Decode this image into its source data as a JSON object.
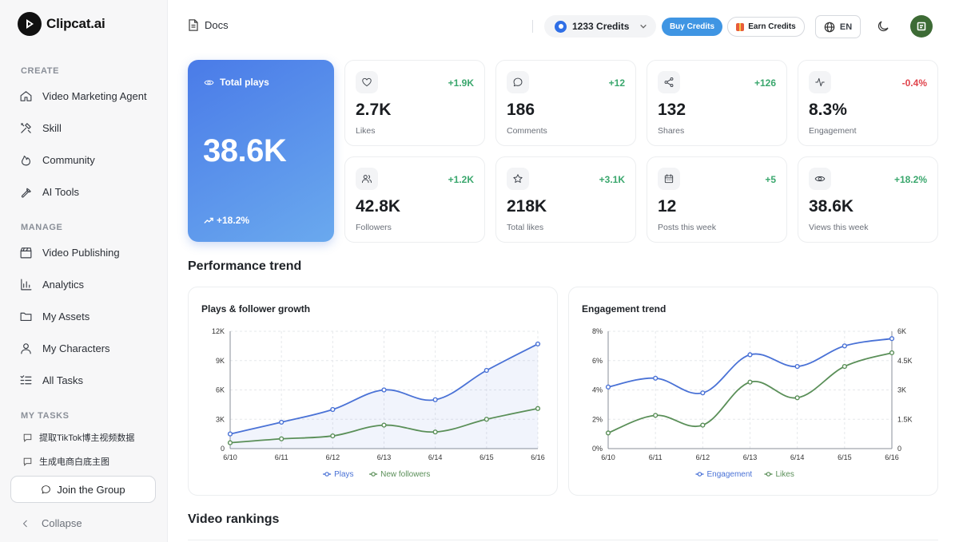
{
  "brand": {
    "name": "Clipcat.ai"
  },
  "sidebar": {
    "sections": {
      "create": "CREATE",
      "manage": "MANAGE",
      "tasks": "MY TASKS"
    },
    "create_items": [
      {
        "label": "Video Marketing Agent",
        "icon": "home-icon"
      },
      {
        "label": "Skill",
        "icon": "tools-icon"
      },
      {
        "label": "Community",
        "icon": "flame-icon"
      },
      {
        "label": "AI Tools",
        "icon": "wrench-icon"
      }
    ],
    "manage_items": [
      {
        "label": "Video Publishing",
        "icon": "clapperboard-icon"
      },
      {
        "label": "Analytics",
        "icon": "bar-chart-icon"
      },
      {
        "label": "My Assets",
        "icon": "folder-icon"
      },
      {
        "label": "My Characters",
        "icon": "user-icon"
      },
      {
        "label": "All Tasks",
        "icon": "checklist-icon"
      }
    ],
    "tasks": [
      {
        "label": "提取TikTok博主视频数据",
        "icon": "chat-icon"
      },
      {
        "label": "生成电商白底主图",
        "icon": "chat-icon"
      }
    ],
    "join_label": "Join the Group",
    "collapse_label": "Collapse"
  },
  "header": {
    "docs_label": "Docs",
    "credits_label": "1233 Credits",
    "buy_label": "Buy Credits",
    "earn_label": "Earn Credits",
    "lang_label": "EN"
  },
  "hero": {
    "label": "Total plays",
    "value": "38.6K",
    "change": "+18.2%"
  },
  "stats": [
    {
      "label": "Likes",
      "value": "2.7K",
      "change": "+1.9K",
      "icon": "heart-icon",
      "negative": false
    },
    {
      "label": "Comments",
      "value": "186",
      "change": "+12",
      "icon": "comment-icon",
      "negative": false
    },
    {
      "label": "Shares",
      "value": "132",
      "change": "+126",
      "icon": "share-icon",
      "negative": false
    },
    {
      "label": "Engagement",
      "value": "8.3%",
      "change": "-0.4%",
      "icon": "activity-icon",
      "negative": true
    },
    {
      "label": "Followers",
      "value": "42.8K",
      "change": "+1.2K",
      "icon": "users-icon",
      "negative": false
    },
    {
      "label": "Total likes",
      "value": "218K",
      "change": "+3.1K",
      "icon": "star-icon",
      "negative": false
    },
    {
      "label": "Posts this week",
      "value": "12",
      "change": "+5",
      "icon": "calendar-icon",
      "negative": false
    },
    {
      "label": "Views this week",
      "value": "38.6K",
      "change": "+18.2%",
      "icon": "eye-icon",
      "negative": false
    }
  ],
  "sections": {
    "performance": "Performance trend",
    "rankings": "Video rankings"
  },
  "colors": {
    "blue": "#4a72d6",
    "green": "#5a8f58",
    "positive": "#3aa76d",
    "negative": "#e0434b"
  },
  "chart_data": [
    {
      "type": "line",
      "title": "Plays & follower growth",
      "categories": [
        "6/10",
        "6/11",
        "6/12",
        "6/13",
        "6/14",
        "6/15",
        "6/16"
      ],
      "series": [
        {
          "name": "Plays",
          "values": [
            1500,
            2700,
            4000,
            6000,
            5000,
            8000,
            10700
          ],
          "color": "#4a72d6",
          "area": true
        },
        {
          "name": "New followers",
          "values": [
            600,
            1000,
            1300,
            2400,
            1700,
            3000,
            4100
          ],
          "color": "#5a8f58"
        }
      ],
      "y_ticks": [
        "0",
        "3K",
        "6K",
        "9K",
        "12K"
      ],
      "ylim": [
        0,
        12000
      ],
      "grid": true,
      "legend": "bottom"
    },
    {
      "type": "line",
      "title": "Engagement trend",
      "categories": [
        "6/10",
        "6/11",
        "6/12",
        "6/13",
        "6/14",
        "6/15",
        "6/16"
      ],
      "series": [
        {
          "name": "Engagement",
          "values": [
            4.2,
            4.8,
            3.8,
            6.4,
            5.6,
            7.0,
            7.5
          ],
          "color": "#4a72d6",
          "axis": "left"
        },
        {
          "name": "Likes",
          "values": [
            800,
            1700,
            1200,
            3400,
            2600,
            4200,
            4900
          ],
          "color": "#5a8f58",
          "axis": "right"
        }
      ],
      "y_ticks_left": [
        "0%",
        "2%",
        "4%",
        "6%",
        "8%"
      ],
      "y_ticks_right": [
        "0",
        "1.5K",
        "3K",
        "4.5K",
        "6K"
      ],
      "ylim_left": [
        0,
        8
      ],
      "ylim_right": [
        0,
        6000
      ],
      "grid": true,
      "legend": "bottom"
    }
  ]
}
